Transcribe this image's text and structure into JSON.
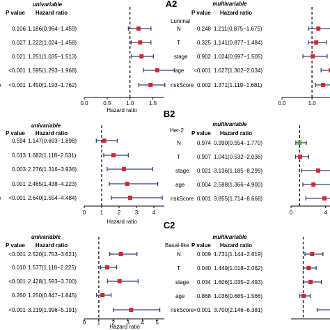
{
  "chart_data": [
    {
      "type": "forest",
      "panel_label": "",
      "subgroup": "",
      "analysis": "univariable",
      "col_p": "P value",
      "col_hr": "Hazard ratio",
      "rows": [
        {
          "name": "",
          "p": "0.106",
          "hr_text": "1.186(0.964−1.459)",
          "hr": 1.186,
          "lo": 0.964,
          "hi": 1.459
        },
        {
          "name": "",
          "p": "0.027",
          "hr_text": "1.222(1.024−1.458)",
          "hr": 1.222,
          "lo": 1.024,
          "hi": 1.458
        },
        {
          "name": "",
          "p": "0.021",
          "hr_text": "1.251(1.035−1.513)",
          "hr": 1.251,
          "lo": 1.035,
          "hi": 1.513
        },
        {
          "name": "",
          "p": "<0.001",
          "hr_text": "1.595(1.293−1.968)",
          "hr": 1.595,
          "lo": 1.293,
          "hi": 1.968
        },
        {
          "name": "e",
          "p": "<0.001",
          "hr_text": "1.450(1.193−1.762)",
          "hr": 1.45,
          "lo": 1.193,
          "hi": 1.762
        }
      ],
      "xlim": [
        0,
        1.75
      ],
      "ticks": [
        "0.0",
        "0.5",
        "1.0",
        "1.5"
      ],
      "xlabel": "Hazard ratio"
    },
    {
      "type": "forest",
      "panel_label": "A2",
      "subgroup": "Luminal",
      "analysis": "multivariable",
      "col_p": "P value",
      "col_hr": "Hazard ratio",
      "rows": [
        {
          "name": "N",
          "p": "0.248",
          "hr_text": "1.211(0.875−1.675)",
          "hr": 1.211,
          "lo": 0.875,
          "hi": 1.675
        },
        {
          "name": "T",
          "p": "0.325",
          "hr_text": "1.141(0.877−1.484)",
          "hr": 1.141,
          "lo": 0.877,
          "hi": 1.484
        },
        {
          "name": "stage",
          "p": "0.902",
          "hr_text": "1.024(0.697−1.505)",
          "hr": 1.024,
          "lo": 0.697,
          "hi": 1.505
        },
        {
          "name": "age",
          "p": "<0.001",
          "hr_text": "1.627(1.302−2.034)",
          "hr": 1.627,
          "lo": 1.302,
          "hi": 2.034
        },
        {
          "name": "riskScore",
          "p": "0.002",
          "hr_text": "1.371(1.119−1.681)",
          "hr": 1.371,
          "lo": 1.119,
          "hi": 1.681
        }
      ],
      "xlim": [
        0,
        1.6
      ],
      "ticks": [
        "0.0",
        "1.0"
      ],
      "xlabel": ""
    },
    {
      "type": "forest",
      "panel_label": "",
      "subgroup": "",
      "analysis": "univariable",
      "col_p": "P value",
      "col_hr": "Hazard ratio",
      "rows": [
        {
          "name": "",
          "p": "0.594",
          "hr_text": "1.147(0.693−1.898)",
          "hr": 1.147,
          "lo": 0.693,
          "hi": 1.898
        },
        {
          "name": "",
          "p": "0.013",
          "hr_text": "1.682(1.118−2.531)",
          "hr": 1.682,
          "lo": 1.118,
          "hi": 2.531
        },
        {
          "name": "",
          "p": "0.003",
          "hr_text": "2.276(1.316−3.936)",
          "hr": 2.276,
          "lo": 1.316,
          "hi": 3.936
        },
        {
          "name": "",
          "p": "0.001",
          "hr_text": "2.465(1.438−4.223)",
          "hr": 2.465,
          "lo": 1.438,
          "hi": 4.223
        },
        {
          "name": "e",
          "p": "<0.001",
          "hr_text": "2.640(1.554−4.484)",
          "hr": 2.64,
          "lo": 1.554,
          "hi": 4.484
        }
      ],
      "xlim": [
        0,
        4.6
      ],
      "ticks": [
        "0",
        "1",
        "2",
        "3",
        "4"
      ],
      "xlabel": "Hazard ratio"
    },
    {
      "type": "forest",
      "panel_label": "B2",
      "subgroup": "Her-2",
      "analysis": "multivariable",
      "col_p": "P value",
      "col_hr": "Hazard ratio",
      "rows": [
        {
          "name": "N",
          "p": "0.974",
          "hr_text": "0.990(0.554−1.770)",
          "hr": 0.99,
          "lo": 0.554,
          "hi": 1.77
        },
        {
          "name": "T",
          "p": "0.907",
          "hr_text": "1.041(0.532−2.036)",
          "hr": 1.041,
          "lo": 0.532,
          "hi": 2.036
        },
        {
          "name": "stage",
          "p": "0.021",
          "hr_text": "3.136(1.185−8.299)",
          "hr": 3.136,
          "lo": 1.185,
          "hi": 8.299
        },
        {
          "name": "age",
          "p": "0.004",
          "hr_text": "2.588(1.366−4.900)",
          "hr": 2.588,
          "lo": 1.366,
          "hi": 4.9
        },
        {
          "name": "riskScore",
          "p": "0.001",
          "hr_text": "3.855(1.714−8.668)",
          "hr": 3.855,
          "lo": 1.714,
          "hi": 8.668
        }
      ],
      "xlim": [
        0,
        4.5
      ],
      "ticks": [
        "0",
        "4"
      ],
      "xlabel": ""
    },
    {
      "type": "forest",
      "panel_label": "",
      "subgroup": "",
      "analysis": "univariable",
      "col_p": "P value",
      "col_hr": "Hazard ratio",
      "rows": [
        {
          "name": "",
          "p": "<0.001",
          "hr_text": "2.520(1.753−3.621)",
          "hr": 2.52,
          "lo": 1.753,
          "hi": 3.621
        },
        {
          "name": "",
          "p": "0.010",
          "hr_text": "1.577(1.118−2.225)",
          "hr": 1.577,
          "lo": 1.118,
          "hi": 2.225
        },
        {
          "name": "",
          "p": "<0.001",
          "hr_text": "2.428(1.593−3.700)",
          "hr": 2.428,
          "lo": 1.593,
          "hi": 3.7
        },
        {
          "name": "",
          "p": "0.260",
          "hr_text": "1.250(0.847−1.845)",
          "hr": 1.25,
          "lo": 0.847,
          "hi": 1.845
        },
        {
          "name": "",
          "p": "<0.001",
          "hr_text": "3.219(1.996−5.191)",
          "hr": 3.219,
          "lo": 1.996,
          "hi": 5.191
        }
      ],
      "xlim": [
        0,
        5.5
      ],
      "ticks": [
        "0",
        "1",
        "2",
        "3",
        "4",
        "5"
      ],
      "xlabel": "Hazard ratio"
    },
    {
      "type": "forest",
      "panel_label": "C2",
      "subgroup": "Basal-like",
      "analysis": "multivariable",
      "col_p": "P value",
      "col_hr": "Hazard ratio",
      "rows": [
        {
          "name": "N",
          "p": "0.009",
          "hr_text": "1.731(1.144−2.619)",
          "hr": 1.731,
          "lo": 1.144,
          "hi": 2.619
        },
        {
          "name": "T",
          "p": "0.040",
          "hr_text": "1.449(1.018−2.062)",
          "hr": 1.449,
          "lo": 1.018,
          "hi": 2.062
        },
        {
          "name": "stage",
          "p": "0.034",
          "hr_text": "1.606(1.035−2.493)",
          "hr": 1.606,
          "lo": 1.035,
          "hi": 2.493
        },
        {
          "name": "age",
          "p": "0.868",
          "hr_text": "1.036(0.685−1.566)",
          "hr": 1.036,
          "lo": 0.685,
          "hi": 1.566
        },
        {
          "name": "riskScore",
          "p": "<0.001",
          "hr_text": "3.700(2.146−6.381)",
          "hr": 3.7,
          "lo": 2.146,
          "hi": 6.381
        }
      ],
      "xlim": [
        0,
        3.2
      ],
      "ticks": [],
      "xlabel": ""
    }
  ],
  "colors": {
    "point": "#d22a2a",
    "point_nonsig": "#4caf50",
    "whisker": "#2c3e80",
    "axis": "#000000"
  }
}
